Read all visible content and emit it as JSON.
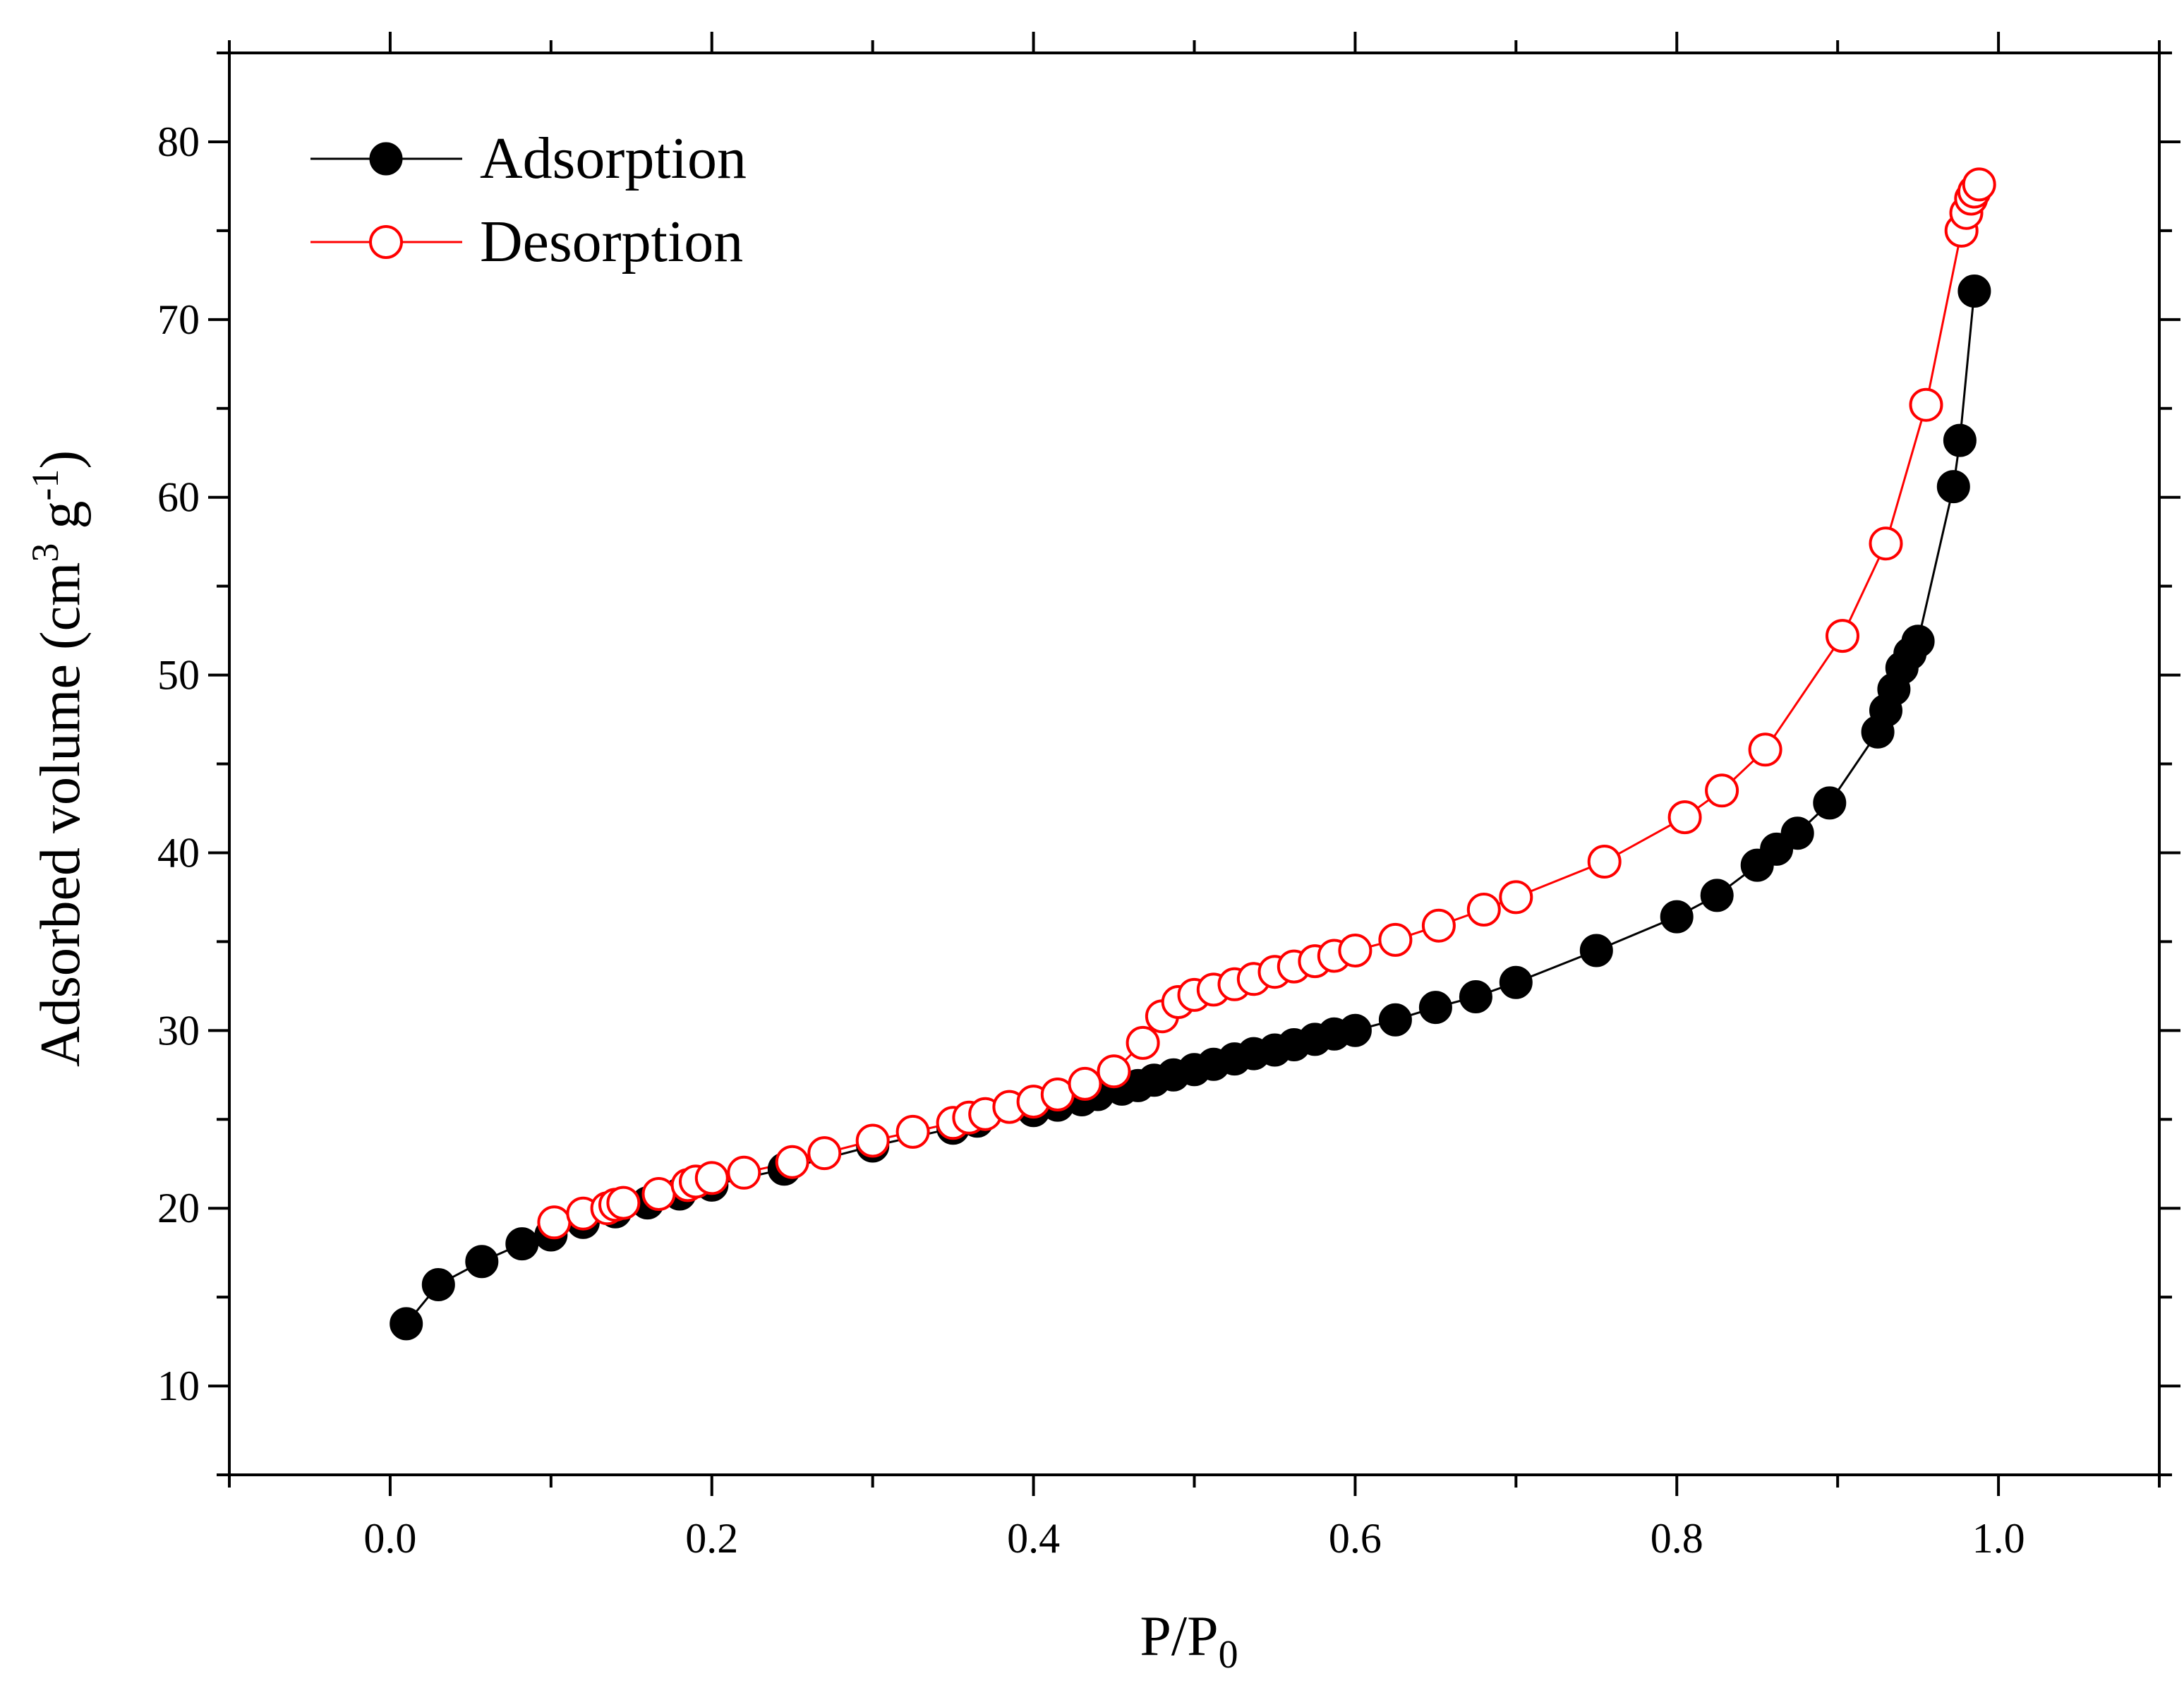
{
  "chart_data": {
    "type": "scatter",
    "xlabel": "P/P",
    "xlabel_sub": "0",
    "ylabel": "Adsorbed volume (cm",
    "ylabel_sup1": "3",
    "ylabel_mid": " g",
    "ylabel_sup2": "-1",
    "ylabel_end": ")",
    "xlim": [
      -0.1,
      1.1
    ],
    "ylim": [
      5,
      85
    ],
    "xticks": [
      0.0,
      0.2,
      0.4,
      0.6,
      0.8,
      1.0
    ],
    "xtick_labels": [
      "0.0",
      "0.2",
      "0.4",
      "0.6",
      "0.8",
      "1.0"
    ],
    "yticks": [
      10,
      20,
      30,
      40,
      50,
      60,
      70,
      80
    ],
    "ytick_labels": [
      "10",
      "20",
      "30",
      "40",
      "50",
      "60",
      "70",
      "80"
    ],
    "grid": false,
    "legend_position": "top-left",
    "series": [
      {
        "name": "Adsorption",
        "color": "#000000",
        "marker": "filled-circle",
        "x": [
          0.01,
          0.03,
          0.057,
          0.082,
          0.1,
          0.12,
          0.14,
          0.16,
          0.18,
          0.2,
          0.245,
          0.3,
          0.35,
          0.365,
          0.4,
          0.415,
          0.43,
          0.44,
          0.455,
          0.465,
          0.475,
          0.487,
          0.5,
          0.512,
          0.525,
          0.537,
          0.55,
          0.562,
          0.575,
          0.587,
          0.6,
          0.625,
          0.65,
          0.675,
          0.7,
          0.75,
          0.8,
          0.825,
          0.85,
          0.862,
          0.875,
          0.895,
          0.925,
          0.93,
          0.935,
          0.94,
          0.945,
          0.95,
          0.972,
          0.976,
          0.985
        ],
        "y": [
          13.5,
          15.7,
          17.0,
          18.0,
          18.5,
          19.2,
          19.8,
          20.3,
          20.8,
          21.3,
          22.2,
          23.5,
          24.5,
          24.9,
          25.5,
          25.8,
          26.1,
          26.4,
          26.7,
          26.9,
          27.2,
          27.5,
          27.8,
          28.1,
          28.4,
          28.7,
          28.9,
          29.2,
          29.5,
          29.8,
          30.0,
          30.6,
          31.3,
          31.9,
          32.7,
          34.5,
          36.4,
          37.6,
          39.3,
          40.2,
          41.1,
          42.8,
          46.8,
          48.0,
          49.2,
          50.4,
          51.2,
          51.9,
          60.6,
          63.2,
          71.6
        ]
      },
      {
        "name": "Desorption",
        "color": "#ff0000",
        "marker": "open-circle",
        "x": [
          0.102,
          0.12,
          0.135,
          0.14,
          0.145,
          0.167,
          0.185,
          0.19,
          0.2,
          0.22,
          0.25,
          0.27,
          0.3,
          0.325,
          0.35,
          0.36,
          0.37,
          0.385,
          0.4,
          0.415,
          0.432,
          0.45,
          0.468,
          0.48,
          0.49,
          0.5,
          0.512,
          0.525,
          0.537,
          0.55,
          0.562,
          0.575,
          0.587,
          0.6,
          0.625,
          0.652,
          0.68,
          0.7,
          0.755,
          0.805,
          0.828,
          0.855,
          0.903,
          0.93,
          0.955,
          0.977,
          0.98,
          0.983,
          0.985,
          0.988
        ],
        "y": [
          19.2,
          19.7,
          20.0,
          20.2,
          20.3,
          20.8,
          21.3,
          21.5,
          21.7,
          22.0,
          22.6,
          23.1,
          23.8,
          24.3,
          24.8,
          25.1,
          25.3,
          25.7,
          26.0,
          26.4,
          27.0,
          27.7,
          29.3,
          30.8,
          31.6,
          32.0,
          32.3,
          32.6,
          32.9,
          33.3,
          33.6,
          33.9,
          34.2,
          34.5,
          35.1,
          35.9,
          36.8,
          37.5,
          39.5,
          42.0,
          43.5,
          45.8,
          52.2,
          57.4,
          65.2,
          75.0,
          76.0,
          76.8,
          77.2,
          77.6
        ]
      }
    ]
  }
}
